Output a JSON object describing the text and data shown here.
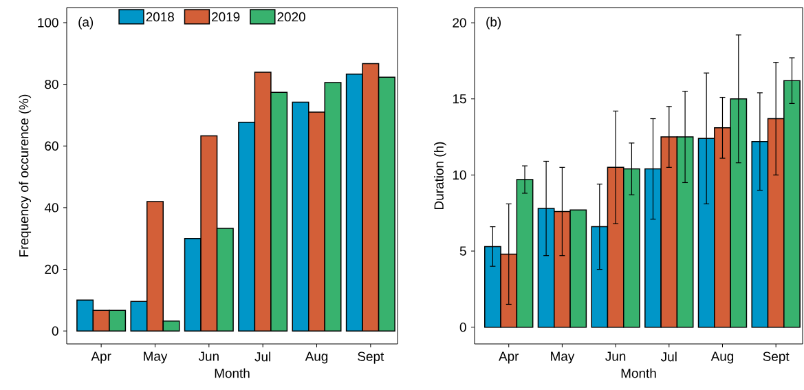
{
  "chart_data": [
    {
      "type": "bar",
      "categories": [
        "Apr",
        "May",
        "Jun",
        "Jul",
        "Aug",
        "Sept"
      ],
      "xlabel": "Month",
      "ylabel": "Frequency of occurence (%)",
      "series": [
        {
          "name": "2018",
          "color": "#0096c8",
          "values": [
            10,
            9.6,
            30,
            67.7,
            74.2,
            83.3
          ]
        },
        {
          "name": "2019",
          "color": "#d35f38",
          "values": [
            6.7,
            42,
            63.3,
            83.9,
            71,
            86.7
          ]
        },
        {
          "name": "2020",
          "color": "#38b26e",
          "values": [
            6.7,
            3.2,
            33.3,
            77.4,
            80.6,
            82.3
          ]
        }
      ],
      "ylim": [
        -4.2,
        104.9
      ],
      "yticks": [
        0,
        20,
        40,
        60,
        80,
        100
      ],
      "legend": "top",
      "grid": false,
      "annotations": [
        "(a)"
      ]
    },
    {
      "type": "bar",
      "categories": [
        "Apr",
        "May",
        "Jun",
        "Jul",
        "Aug",
        "Sept"
      ],
      "xlabel": "Month",
      "ylabel": "Duration (h)",
      "series": [
        {
          "color": "#0096c8",
          "values": [
            5.3,
            7.8,
            6.6,
            10.4,
            12.4,
            12.2
          ],
          "errors": [
            1.3,
            3.1,
            2.8,
            3.3,
            4.3,
            3.2
          ]
        },
        {
          "color": "#d35f38",
          "values": [
            4.8,
            7.6,
            10.5,
            12.5,
            13.1,
            13.7
          ],
          "errors": [
            3.3,
            2.9,
            3.7,
            2.0,
            2.0,
            3.7
          ]
        },
        {
          "color": "#38b26e",
          "values": [
            9.7,
            7.7,
            10.4,
            12.5,
            15.0,
            16.2
          ],
          "errors": [
            0.9,
            null,
            1.7,
            3.0,
            4.2,
            1.5
          ]
        }
      ],
      "ylim": [
        -1.1,
        21
      ],
      "yticks": [
        0,
        5,
        10,
        15,
        20
      ],
      "grid": false,
      "annotations": [
        "(b)"
      ]
    }
  ]
}
